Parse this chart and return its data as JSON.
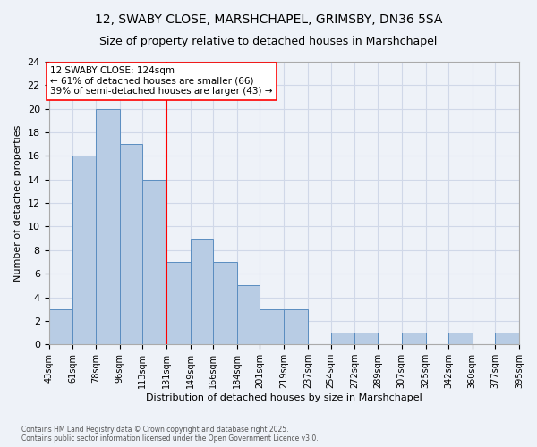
{
  "title1": "12, SWABY CLOSE, MARSHCHAPEL, GRIMSBY, DN36 5SA",
  "title2": "Size of property relative to detached houses in Marshchapel",
  "xlabel": "Distribution of detached houses by size in Marshchapel",
  "ylabel": "Number of detached properties",
  "footnote": "Contains HM Land Registry data © Crown copyright and database right 2025.\nContains public sector information licensed under the Open Government Licence v3.0.",
  "bin_labels": [
    "43sqm",
    "61sqm",
    "78sqm",
    "96sqm",
    "113sqm",
    "131sqm",
    "149sqm",
    "166sqm",
    "184sqm",
    "201sqm",
    "219sqm",
    "237sqm",
    "254sqm",
    "272sqm",
    "289sqm",
    "307sqm",
    "325sqm",
    "342sqm",
    "360sqm",
    "377sqm",
    "395sqm"
  ],
  "bin_edges": [
    43,
    61,
    78,
    96,
    113,
    131,
    149,
    166,
    184,
    201,
    219,
    237,
    254,
    272,
    289,
    307,
    325,
    342,
    360,
    377,
    395
  ],
  "bar_heights": [
    3,
    16,
    20,
    17,
    14,
    7,
    9,
    7,
    5,
    3,
    3,
    0,
    1,
    1,
    0,
    1,
    0,
    1,
    0,
    1
  ],
  "bar_color": "#b8cce4",
  "bar_edge_color": "#5a8dc0",
  "grid_color": "#d0d8e8",
  "background_color": "#eef2f8",
  "vline_x": 131,
  "vline_color": "red",
  "annotation_text": "12 SWABY CLOSE: 124sqm\n← 61% of detached houses are smaller (66)\n39% of semi-detached houses are larger (43) →",
  "annotation_box_color": "white",
  "annotation_box_edge": "red",
  "ylim": [
    0,
    24
  ],
  "yticks": [
    0,
    2,
    4,
    6,
    8,
    10,
    12,
    14,
    16,
    18,
    20,
    22,
    24
  ]
}
